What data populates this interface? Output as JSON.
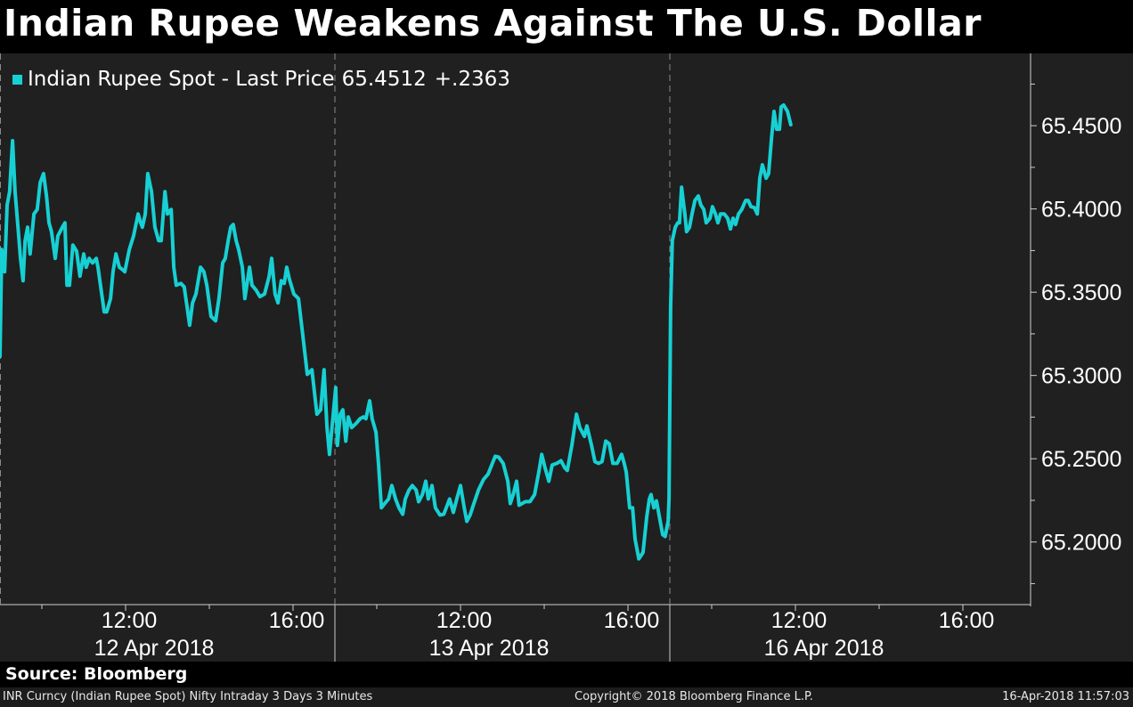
{
  "title": "Indian Rupee Weakens Against The U.S. Dollar",
  "source": "Source: Bloomberg",
  "footer": {
    "left": "INR Curncy (Indian Rupee Spot) Nifty Intraday 3 Days 3 Minutes",
    "center": "Copyright© 2018 Bloomberg Finance L.P.",
    "right": "16-Apr-2018 11:57:03"
  },
  "colors": {
    "line": "#17d0d3",
    "background": "#202020",
    "grid": "#8a8a8a"
  },
  "chart_data": {
    "type": "line",
    "title": "Indian Rupee Weakens Against The U.S. Dollar",
    "legend": {
      "label": "Indian Rupee Spot - Last Price",
      "last": "65.4512",
      "change": "+.2363",
      "placement": "top-left"
    },
    "x_unit": "trading hours from session start (3 sessions of 8 hours, 09:00-17:00)",
    "xlim": [
      0,
      24.6
    ],
    "ylim": [
      65.1624,
      65.4934
    ],
    "yticks": [
      65.2,
      65.25,
      65.3,
      65.35,
      65.4,
      65.45
    ],
    "ytick_labels": [
      "65.2000",
      "65.2500",
      "65.3000",
      "65.3500",
      "65.4000",
      "65.4500"
    ],
    "y_axis_side": "right",
    "xticks": [
      {
        "x": 3,
        "label": "12:00"
      },
      {
        "x": 7,
        "label": "16:00"
      },
      {
        "x": 11,
        "label": "12:00"
      },
      {
        "x": 15,
        "label": "16:00"
      },
      {
        "x": 19,
        "label": "12:00"
      },
      {
        "x": 23,
        "label": "16:00"
      }
    ],
    "sessions": [
      {
        "start": 0,
        "label": "12 Apr 2018"
      },
      {
        "start": 8,
        "label": "13 Apr 2018"
      },
      {
        "start": 16,
        "label": "16 Apr 2018"
      }
    ],
    "series": [
      {
        "name": "Indian Rupee Spot - Last Price",
        "points": [
          [
            0.0,
            65.3114
          ],
          [
            0.04,
            65.3757
          ],
          [
            0.11,
            65.3623
          ],
          [
            0.17,
            65.4024
          ],
          [
            0.23,
            65.4104
          ],
          [
            0.3,
            65.441
          ],
          [
            0.36,
            65.4104
          ],
          [
            0.43,
            65.389
          ],
          [
            0.49,
            65.3703
          ],
          [
            0.55,
            65.3569
          ],
          [
            0.6,
            65.381
          ],
          [
            0.66,
            65.389
          ],
          [
            0.72,
            65.373
          ],
          [
            0.81,
            65.397
          ],
          [
            0.89,
            65.3997
          ],
          [
            0.96,
            65.4158
          ],
          [
            1.04,
            65.4212
          ],
          [
            1.11,
            65.4078
          ],
          [
            1.17,
            65.3917
          ],
          [
            1.23,
            65.3864
          ],
          [
            1.32,
            65.3703
          ],
          [
            1.38,
            65.3837
          ],
          [
            1.49,
            65.389
          ],
          [
            1.55,
            65.3917
          ],
          [
            1.6,
            65.3542
          ],
          [
            1.66,
            65.3542
          ],
          [
            1.74,
            65.3783
          ],
          [
            1.83,
            65.3746
          ],
          [
            1.91,
            65.3596
          ],
          [
            2.0,
            65.373
          ],
          [
            2.06,
            65.365
          ],
          [
            2.13,
            65.3703
          ],
          [
            2.21,
            65.3676
          ],
          [
            2.3,
            65.3703
          ],
          [
            2.34,
            65.365
          ],
          [
            2.4,
            65.3542
          ],
          [
            2.49,
            65.3382
          ],
          [
            2.55,
            65.3382
          ],
          [
            2.64,
            65.3462
          ],
          [
            2.7,
            65.3623
          ],
          [
            2.77,
            65.373
          ],
          [
            2.85,
            65.365
          ],
          [
            2.94,
            65.3633
          ],
          [
            2.98,
            65.3623
          ],
          [
            3.09,
            65.3757
          ],
          [
            3.19,
            65.3837
          ],
          [
            3.3,
            65.397
          ],
          [
            3.36,
            65.3917
          ],
          [
            3.4,
            65.389
          ],
          [
            3.47,
            65.397
          ],
          [
            3.53,
            65.4212
          ],
          [
            3.62,
            65.4104
          ],
          [
            3.7,
            65.389
          ],
          [
            3.79,
            65.381
          ],
          [
            3.85,
            65.381
          ],
          [
            3.94,
            65.4104
          ],
          [
            4.0,
            65.397
          ],
          [
            4.09,
            65.3997
          ],
          [
            4.15,
            65.365
          ],
          [
            4.21,
            65.3542
          ],
          [
            4.32,
            65.3553
          ],
          [
            4.4,
            65.3532
          ],
          [
            4.47,
            65.3409
          ],
          [
            4.53,
            65.3302
          ],
          [
            4.6,
            65.3436
          ],
          [
            4.68,
            65.3489
          ],
          [
            4.79,
            65.365
          ],
          [
            4.87,
            65.3623
          ],
          [
            4.94,
            65.3542
          ],
          [
            5.04,
            65.3355
          ],
          [
            5.15,
            65.3328
          ],
          [
            5.23,
            65.3462
          ],
          [
            5.32,
            65.3676
          ],
          [
            5.38,
            65.3703
          ],
          [
            5.45,
            65.381
          ],
          [
            5.51,
            65.389
          ],
          [
            5.57,
            65.3907
          ],
          [
            5.64,
            65.381
          ],
          [
            5.7,
            65.3757
          ],
          [
            5.79,
            65.365
          ],
          [
            5.85,
            65.3462
          ],
          [
            5.96,
            65.365
          ],
          [
            6.02,
            65.3542
          ],
          [
            6.11,
            65.3515
          ],
          [
            6.21,
            65.3473
          ],
          [
            6.32,
            65.3489
          ],
          [
            6.43,
            65.3596
          ],
          [
            6.49,
            65.3703
          ],
          [
            6.57,
            65.3489
          ],
          [
            6.64,
            65.3436
          ],
          [
            6.72,
            65.3569
          ],
          [
            6.79,
            65.3553
          ],
          [
            6.85,
            65.365
          ],
          [
            6.91,
            65.358
          ],
          [
            7.02,
            65.3489
          ],
          [
            7.13,
            65.3462
          ],
          [
            7.23,
            65.3248
          ],
          [
            7.34,
            65.3007
          ],
          [
            7.45,
            65.3034
          ],
          [
            7.57,
            65.2767
          ],
          [
            7.66,
            65.2794
          ],
          [
            7.74,
            65.3034
          ],
          [
            7.81,
            65.2687
          ],
          [
            7.87,
            65.2526
          ],
          [
            7.96,
            65.2767
          ],
          [
            8.02,
            65.2927
          ],
          [
            8.06,
            65.258
          ],
          [
            8.13,
            65.2767
          ],
          [
            8.19,
            65.2794
          ],
          [
            8.26,
            65.2606
          ],
          [
            8.32,
            65.2751
          ],
          [
            8.4,
            65.2687
          ],
          [
            8.51,
            65.2713
          ],
          [
            8.6,
            65.274
          ],
          [
            8.68,
            65.2751
          ],
          [
            8.74,
            65.274
          ],
          [
            8.83,
            65.2848
          ],
          [
            8.89,
            65.274
          ],
          [
            8.98,
            65.266
          ],
          [
            9.04,
            65.2472
          ],
          [
            9.11,
            65.2205
          ],
          [
            9.19,
            65.2231
          ],
          [
            9.28,
            65.2258
          ],
          [
            9.36,
            65.2339
          ],
          [
            9.45,
            65.2258
          ],
          [
            9.53,
            65.2205
          ],
          [
            9.62,
            65.2167
          ],
          [
            9.68,
            65.2258
          ],
          [
            9.77,
            65.2312
          ],
          [
            9.85,
            65.2339
          ],
          [
            9.94,
            65.2312
          ],
          [
            10.0,
            65.2242
          ],
          [
            10.09,
            65.2285
          ],
          [
            10.17,
            65.2365
          ],
          [
            10.23,
            65.2258
          ],
          [
            10.32,
            65.2339
          ],
          [
            10.4,
            65.2205
          ],
          [
            10.51,
            65.2162
          ],
          [
            10.6,
            65.2167
          ],
          [
            10.66,
            65.2205
          ],
          [
            10.74,
            65.2258
          ],
          [
            10.83,
            65.2178
          ],
          [
            10.91,
            65.2258
          ],
          [
            11.0,
            65.2339
          ],
          [
            11.09,
            65.2205
          ],
          [
            11.15,
            65.2124
          ],
          [
            11.23,
            65.2162
          ],
          [
            11.32,
            65.2231
          ],
          [
            11.43,
            65.2312
          ],
          [
            11.55,
            65.2376
          ],
          [
            11.66,
            65.2408
          ],
          [
            11.83,
            65.2515
          ],
          [
            11.91,
            65.251
          ],
          [
            12.02,
            65.2472
          ],
          [
            12.13,
            65.2365
          ],
          [
            12.19,
            65.2231
          ],
          [
            12.26,
            65.2285
          ],
          [
            12.34,
            65.2365
          ],
          [
            12.4,
            65.2221
          ],
          [
            12.47,
            65.2231
          ],
          [
            12.55,
            65.2242
          ],
          [
            12.66,
            65.2242
          ],
          [
            12.77,
            65.2285
          ],
          [
            12.87,
            65.2419
          ],
          [
            12.94,
            65.2526
          ],
          [
            13.02,
            65.2446
          ],
          [
            13.11,
            65.2365
          ],
          [
            13.19,
            65.2462
          ],
          [
            13.3,
            65.2472
          ],
          [
            13.4,
            65.2488
          ],
          [
            13.49,
            65.2446
          ],
          [
            13.55,
            65.243
          ],
          [
            13.66,
            65.258
          ],
          [
            13.77,
            65.2767
          ],
          [
            13.85,
            65.2687
          ],
          [
            13.96,
            65.2634
          ],
          [
            14.02,
            65.2697
          ],
          [
            14.13,
            65.258
          ],
          [
            14.21,
            65.2483
          ],
          [
            14.3,
            65.2472
          ],
          [
            14.38,
            65.2483
          ],
          [
            14.47,
            65.2606
          ],
          [
            14.55,
            65.259
          ],
          [
            14.64,
            65.2472
          ],
          [
            14.74,
            65.2472
          ],
          [
            14.85,
            65.2526
          ],
          [
            14.91,
            65.2472
          ],
          [
            14.96,
            65.2419
          ],
          [
            15.04,
            65.2205
          ],
          [
            15.11,
            65.2205
          ],
          [
            15.17,
            65.2017
          ],
          [
            15.26,
            65.1899
          ],
          [
            15.36,
            65.1937
          ],
          [
            15.45,
            65.2151
          ],
          [
            15.51,
            65.2258
          ],
          [
            15.55,
            65.2285
          ],
          [
            15.62,
            65.2205
          ],
          [
            15.68,
            65.2247
          ],
          [
            15.77,
            65.2124
          ],
          [
            15.83,
            65.2044
          ],
          [
            15.89,
            65.2033
          ],
          [
            15.96,
            65.2124
          ],
          [
            15.98,
            65.2258
          ],
          [
            16.02,
            65.3409
          ],
          [
            16.06,
            65.381
          ],
          [
            16.13,
            65.389
          ],
          [
            16.19,
            65.3917
          ],
          [
            16.23,
            65.3917
          ],
          [
            16.28,
            65.4131
          ],
          [
            16.32,
            65.4051
          ],
          [
            16.36,
            65.397
          ],
          [
            16.4,
            65.3864
          ],
          [
            16.47,
            65.389
          ],
          [
            16.53,
            65.397
          ],
          [
            16.6,
            65.4051
          ],
          [
            16.68,
            65.4078
          ],
          [
            16.74,
            65.4024
          ],
          [
            16.81,
            65.3997
          ],
          [
            16.87,
            65.3917
          ],
          [
            16.96,
            65.3944
          ],
          [
            17.02,
            65.4013
          ],
          [
            17.09,
            65.397
          ],
          [
            17.15,
            65.3917
          ],
          [
            17.21,
            65.397
          ],
          [
            17.3,
            65.397
          ],
          [
            17.38,
            65.3944
          ],
          [
            17.45,
            65.388
          ],
          [
            17.51,
            65.3944
          ],
          [
            17.57,
            65.3907
          ],
          [
            17.64,
            65.397
          ],
          [
            17.72,
            65.3997
          ],
          [
            17.81,
            65.4051
          ],
          [
            17.87,
            65.4051
          ],
          [
            17.94,
            65.4013
          ],
          [
            18.02,
            65.4008
          ],
          [
            18.09,
            65.397
          ],
          [
            18.15,
            65.4185
          ],
          [
            18.21,
            65.4265
          ],
          [
            18.3,
            65.4185
          ],
          [
            18.36,
            65.4212
          ],
          [
            18.43,
            65.4426
          ],
          [
            18.49,
            65.4586
          ],
          [
            18.55,
            65.4479
          ],
          [
            18.62,
            65.4479
          ],
          [
            18.66,
            65.4613
          ],
          [
            18.72,
            65.4624
          ],
          [
            18.81,
            65.4586
          ],
          [
            18.89,
            65.4506
          ]
        ]
      }
    ]
  }
}
